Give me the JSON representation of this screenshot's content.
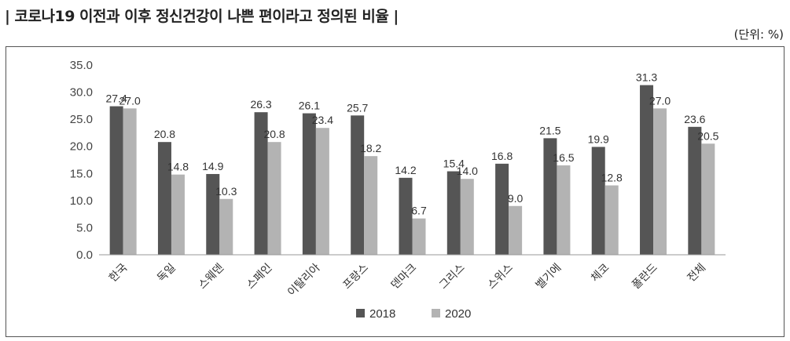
{
  "header": {
    "title": "| 코로나19 이전과 이후 정신건강이 나쁜 편이라고 정의된 비율 |",
    "unit": "(단위:  %)"
  },
  "chart_data": {
    "type": "bar",
    "categories": [
      "한국",
      "독일",
      "스웨덴",
      "스페인",
      "이탈리아",
      "프랑스",
      "덴마크",
      "그리스",
      "스위스",
      "벨기에",
      "체코",
      "폴란드",
      "전체"
    ],
    "series": [
      {
        "name": "2018",
        "color": "#555555",
        "values": [
          27.4,
          20.8,
          14.9,
          26.3,
          26.1,
          25.7,
          14.2,
          15.4,
          16.8,
          21.5,
          19.9,
          31.3,
          23.6
        ]
      },
      {
        "name": "2020",
        "color": "#b3b3b3",
        "values": [
          27.0,
          14.8,
          10.3,
          20.8,
          23.4,
          18.2,
          6.7,
          14.0,
          9.0,
          16.5,
          12.8,
          27.0,
          20.5
        ]
      }
    ],
    "data_labels": {
      "2018": [
        "27.4",
        "20.8",
        "14.9",
        "26.3",
        "26.1",
        "25.7",
        "14.2",
        "15.4",
        "16.8",
        "21.5",
        "19.9",
        "31.3",
        "23.6"
      ],
      "2020": [
        "27.0",
        "14.8",
        "10.3",
        "20.8",
        "23.4",
        "18.2",
        "6.7",
        "14.0",
        "9.0",
        "16.5",
        "12.8",
        "27.0",
        "20.5"
      ]
    },
    "ylim": [
      0,
      35
    ],
    "yticks": [
      "0.0",
      "5.0",
      "10.0",
      "15.0",
      "20.0",
      "25.0",
      "30.0",
      "35.0"
    ],
    "ytick_values": [
      0,
      5,
      10,
      15,
      20,
      25,
      30,
      35
    ],
    "grid": false,
    "legend": "bottom-center"
  }
}
